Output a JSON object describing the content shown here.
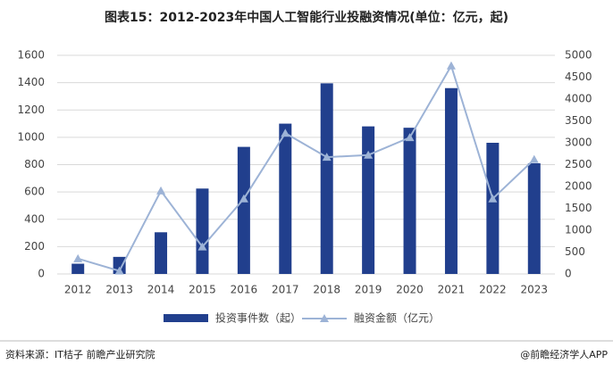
{
  "chart_data": {
    "type": "bar-line",
    "title": "图表15：2012-2023年中国人工智能行业投融资情况(单位：亿元，起)",
    "categories": [
      "2012",
      "2013",
      "2014",
      "2015",
      "2016",
      "2017",
      "2018",
      "2019",
      "2020",
      "2021",
      "2022",
      "2023"
    ],
    "series": [
      {
        "name": "投资事件数（起）",
        "type": "bar",
        "color": "#213f8d",
        "axis": "y",
        "values": [
          75,
          125,
          305,
          625,
          930,
          1100,
          1395,
          1080,
          1070,
          1360,
          960,
          810
        ]
      },
      {
        "name": "融资金额（亿元）",
        "type": "line",
        "color": "#9db3d6",
        "axis": "y2",
        "values": [
          350,
          70,
          1900,
          620,
          1720,
          3220,
          2670,
          2720,
          3120,
          4760,
          1720,
          2620
        ]
      }
    ],
    "ylim": [
      0,
      1600
    ],
    "yticks": [
      0,
      200,
      400,
      600,
      800,
      1000,
      1200,
      1400,
      1600
    ],
    "y2lim": [
      0,
      5000
    ],
    "y2ticks": [
      0,
      500,
      1000,
      1500,
      2000,
      2500,
      3000,
      3500,
      4000,
      4500,
      5000
    ],
    "grid": true,
    "source": "资料来源：IT桔子 前瞻产业研究院",
    "credit": "@前瞻经济学人APP"
  }
}
